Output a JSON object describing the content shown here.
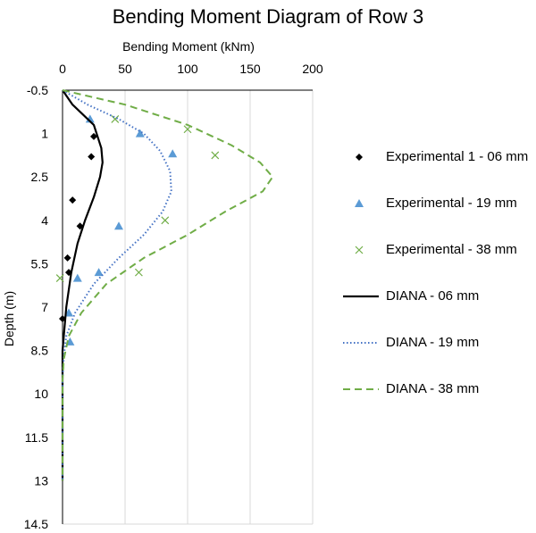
{
  "chart_data": {
    "type": "scatter",
    "title": "Bending Moment Diagram of Row 3",
    "xlabel": "Bending Moment (kNm)",
    "ylabel": "Depth (m)",
    "xlim": [
      0,
      200
    ],
    "ylim": [
      -0.5,
      14.5
    ],
    "y_inverted": true,
    "x_axis_position": "top",
    "xticks": [
      "0",
      "50",
      "100",
      "150",
      "200"
    ],
    "yticks": [
      "-0.5",
      "1",
      "2.5",
      "4",
      "5.5",
      "7",
      "8.5",
      "10",
      "11.5",
      "13",
      "14.5"
    ],
    "grid": "vertical",
    "legend_position": "right",
    "series": [
      {
        "name": "Experimental 1 - 06 mm",
        "kind": "markers",
        "marker": "diamond",
        "color": "#000000",
        "points": [
          [
            25,
            1.1
          ],
          [
            23,
            1.8
          ],
          [
            8,
            3.3
          ],
          [
            14,
            4.2
          ],
          [
            5,
            5.8
          ],
          [
            4,
            5.3
          ],
          [
            0,
            7.4
          ]
        ]
      },
      {
        "name": "Experimental - 19 mm",
        "kind": "markers",
        "marker": "triangle",
        "color": "#5B9BD5",
        "points": [
          [
            22,
            0.5
          ],
          [
            62,
            1.0
          ],
          [
            88,
            1.7
          ],
          [
            45,
            4.2
          ],
          [
            29,
            5.8
          ],
          [
            12,
            6.0
          ],
          [
            5,
            7.2
          ],
          [
            6,
            8.2
          ]
        ]
      },
      {
        "name": "Experimental - 38 mm",
        "kind": "markers",
        "marker": "x",
        "color": "#70AD47",
        "points": [
          [
            42,
            0.5
          ],
          [
            100,
            0.85
          ],
          [
            122,
            1.75
          ],
          [
            82,
            4.0
          ],
          [
            61,
            5.8
          ],
          [
            -2,
            6.0
          ]
        ]
      },
      {
        "name": "DIANA - 06 mm",
        "kind": "line",
        "dash": "solid",
        "color": "#000000",
        "points": [
          [
            0,
            -0.5
          ],
          [
            8,
            0
          ],
          [
            25,
            0.7
          ],
          [
            28,
            1.1
          ],
          [
            31,
            1.5
          ],
          [
            32,
            2.0
          ],
          [
            30,
            2.5
          ],
          [
            25,
            3.2
          ],
          [
            18,
            4.0
          ],
          [
            12,
            4.8
          ],
          [
            7,
            5.8
          ],
          [
            3,
            7.0
          ],
          [
            1,
            8.0
          ],
          [
            0,
            8.5
          ],
          [
            0,
            13
          ]
        ]
      },
      {
        "name": "DIANA - 19 mm",
        "kind": "line",
        "dash": "dotted",
        "color": "#4472C4",
        "points": [
          [
            0,
            -0.5
          ],
          [
            20,
            0
          ],
          [
            45,
            0.5
          ],
          [
            65,
            1.0
          ],
          [
            78,
            1.6
          ],
          [
            86,
            2.3
          ],
          [
            87,
            3.0
          ],
          [
            80,
            3.7
          ],
          [
            65,
            4.5
          ],
          [
            45,
            5.3
          ],
          [
            25,
            6.2
          ],
          [
            10,
            7.2
          ],
          [
            3,
            8.0
          ],
          [
            1,
            8.7
          ],
          [
            0,
            9.5
          ],
          [
            0,
            13
          ]
        ]
      },
      {
        "name": "DIANA - 38 mm",
        "kind": "line",
        "dash": "dashed",
        "color": "#70AD47",
        "points": [
          [
            0,
            -0.5
          ],
          [
            50,
            0
          ],
          [
            100,
            0.7
          ],
          [
            135,
            1.4
          ],
          [
            158,
            2.0
          ],
          [
            168,
            2.5
          ],
          [
            160,
            3.0
          ],
          [
            130,
            3.7
          ],
          [
            100,
            4.5
          ],
          [
            65,
            5.3
          ],
          [
            35,
            6.2
          ],
          [
            15,
            7.2
          ],
          [
            5,
            8.0
          ],
          [
            1,
            8.8
          ],
          [
            0,
            9.5
          ],
          [
            0,
            13
          ]
        ]
      }
    ]
  }
}
